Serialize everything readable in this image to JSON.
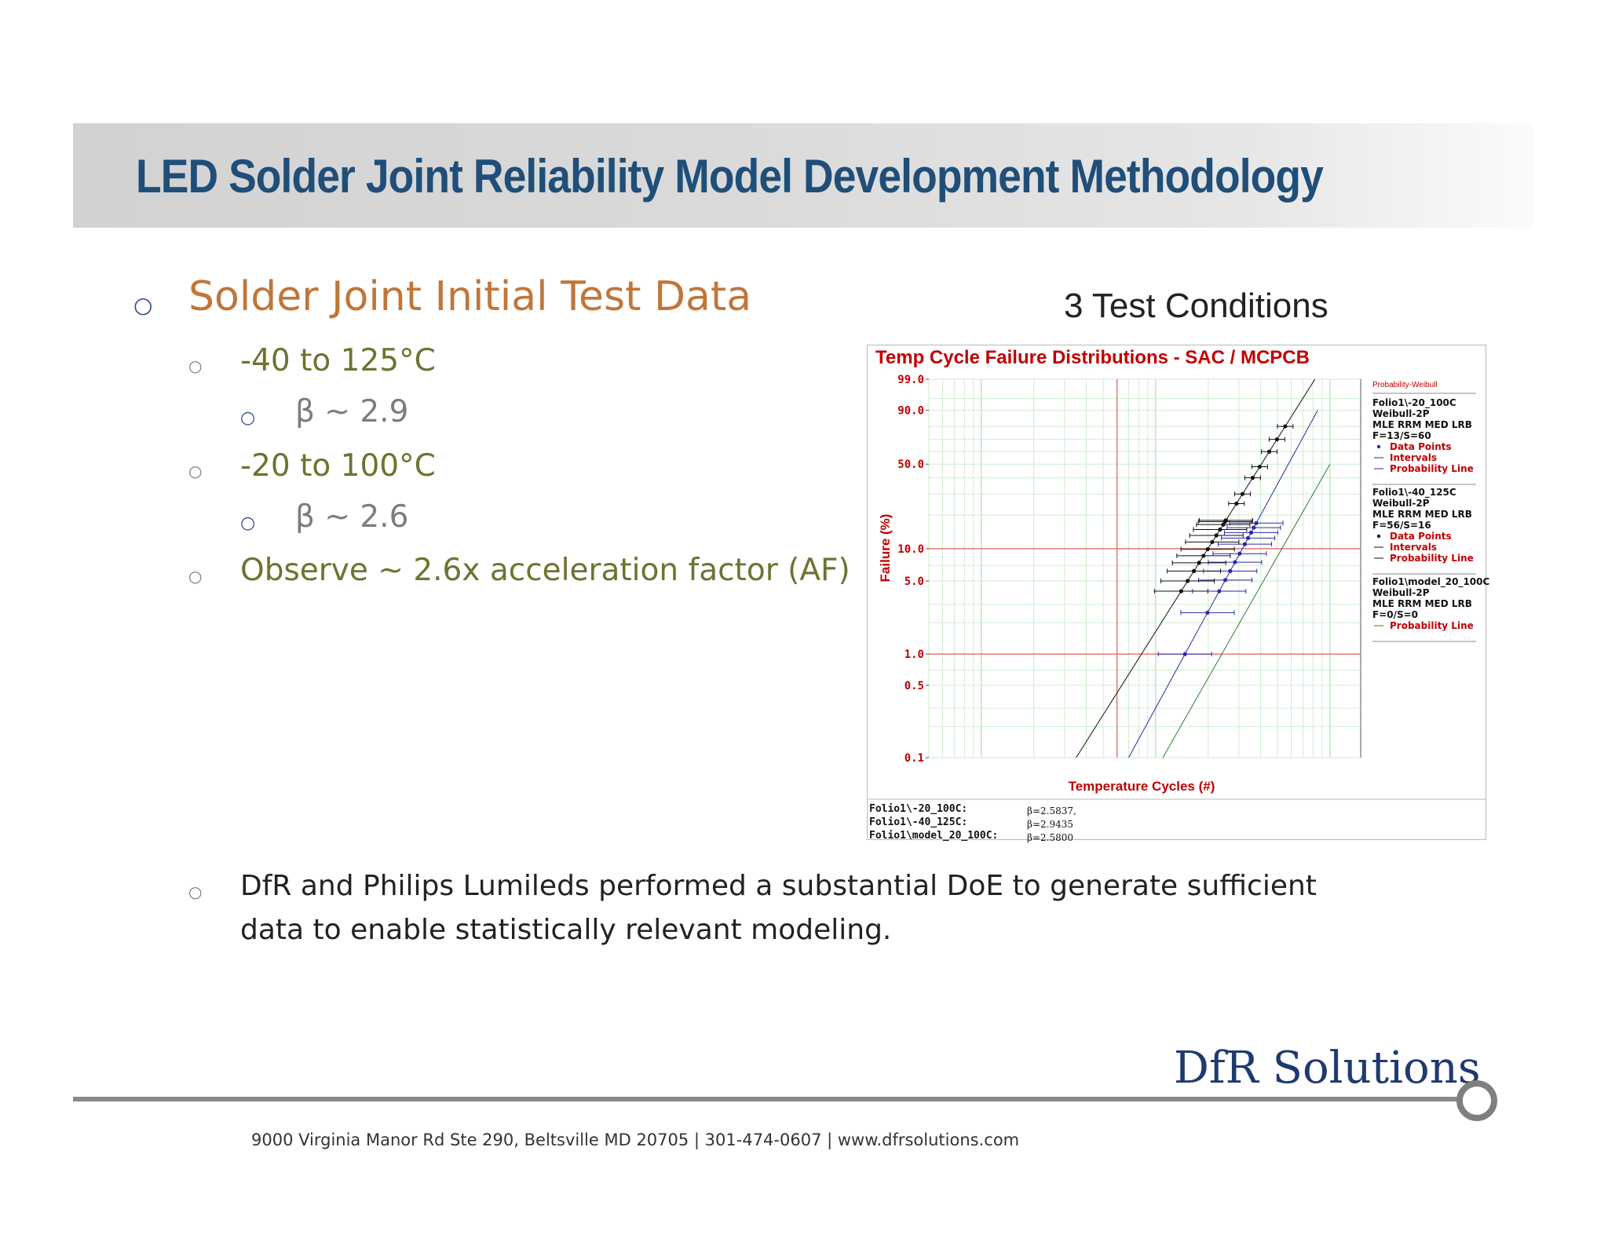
{
  "slide": {
    "title": "LED Solder Joint Reliability Model Development Methodology",
    "heading": "Solder Joint Initial Test Data",
    "items": [
      {
        "text": "-40 to 125°C",
        "sub": "β ~ 2.9"
      },
      {
        "text": "-20 to 100°C",
        "sub": "β ~ 2.6"
      }
    ],
    "observe": "Observe ~ 2.6x acceleration factor (AF)",
    "doe_line1": "DfR and Philips Lumileds performed a substantial DoE to generate sufficient",
    "doe_line2": "data to enable statistically relevant modeling.",
    "chart_caption": "3 Test Conditions"
  },
  "footer": {
    "brand": "DfR Solutions",
    "address": "9000 Virginia Manor Rd Ste 290, Beltsville MD 20705 | 301-474-0607 | www.dfrsolutions.com"
  },
  "chart_data": {
    "type": "scatter",
    "title": "Temp Cycle Failure Distributions - SAC / MCPCB",
    "xlabel": "Temperature Cycles (#)",
    "ylabel": "Failure (%)",
    "y_scale": "weibull-probability",
    "y_ticks": [
      "99.0",
      "90.0",
      "50.0",
      "10.0",
      "5.0",
      "1.0",
      "0.5",
      "0.1"
    ],
    "y_tick_values": [
      99,
      90,
      50,
      10,
      5,
      1,
      0.5,
      0.1
    ],
    "x_ticks_labeled": false,
    "grid": true,
    "reference_lines": {
      "y": [
        10,
        1
      ]
    },
    "legend_header": "Probability-Weibull",
    "legend": [
      {
        "folio": "Folio1\\-20_100C",
        "dist": "Weibull-2P",
        "method": "MLE RRM MED LRB",
        "fs": "F=13/S=60",
        "entries": [
          "Data Points",
          "Intervals",
          "Probability Line"
        ],
        "color": "#2a2aa8"
      },
      {
        "folio": "Folio1\\-40_125C",
        "dist": "Weibull-2P",
        "method": "MLE RRM MED LRB",
        "fs": "F=56/S=16",
        "entries": [
          "Data Points",
          "Intervals",
          "Probability Line"
        ],
        "color": "#111111"
      },
      {
        "folio": "Folio1\\model_20_100C",
        "dist": "Weibull-2P",
        "method": "MLE RRM MED LRB",
        "fs": "F=0/S=0",
        "entries": [
          "Probability Line"
        ],
        "color": "#2e7d32"
      }
    ],
    "series": [
      {
        "name": "Folio1\\-20_100C",
        "beta": "β=2.5837,",
        "color": "#2a2aa8",
        "probability_line": {
          "x": [
            0.7,
            8.5
          ],
          "y": [
            0.1,
            90
          ]
        },
        "points_y": [
          1.0,
          2.5,
          4.0,
          5.1,
          6.2,
          7.5,
          9.0,
          11.0,
          12.5,
          14.0,
          15.5,
          17.0
        ]
      },
      {
        "name": "Folio1\\-40_125C",
        "beta": "β=2.9435",
        "color": "#111111",
        "probability_line": {
          "x": [
            0.35,
            8.2
          ],
          "y": [
            0.1,
            99
          ]
        },
        "points_y": [
          4.0,
          5.0,
          6.2,
          7.4,
          8.6,
          9.9,
          11.5,
          13.2,
          14.9,
          16.5,
          17.5,
          18.0,
          25.0,
          30.0,
          40.0,
          48.0,
          60.0,
          70.0,
          80.0
        ]
      },
      {
        "name": "Folio1\\model_20_100C",
        "beta": "β=2.5800",
        "color": "#2e7d32",
        "probability_line": {
          "x": [
            1.1,
            10.0
          ],
          "y": [
            0.1,
            50
          ]
        },
        "points_y": []
      }
    ],
    "summary": [
      {
        "label": "Folio1\\-20_100C:",
        "beta": "β=2.5837,"
      },
      {
        "label": "Folio1\\-40_125C:",
        "beta": "β=2.9435"
      },
      {
        "label": "Folio1\\model_20_100C:",
        "beta": "β=2.5800"
      }
    ]
  }
}
